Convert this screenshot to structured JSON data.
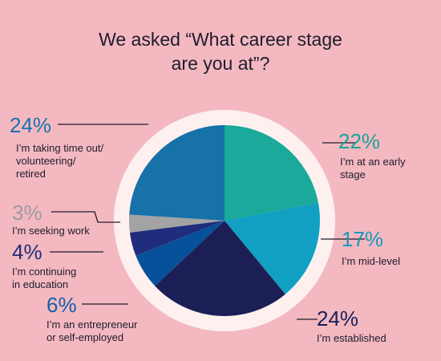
{
  "title": "We asked “What career stage\nare you at”?",
  "chart_data": {
    "type": "pie",
    "title": "We asked “What career stage are you at”?",
    "slices": [
      {
        "label": "I’m at an early stage",
        "percent_label": "22%",
        "value": 22,
        "color": "#1aa99a",
        "pct_color": "#17a596"
      },
      {
        "label": "I’m mid-level",
        "percent_label": "17%",
        "value": 17,
        "color": "#11a0c2",
        "pct_color": "#119bbd"
      },
      {
        "label": "I’m established",
        "percent_label": "24%",
        "value": 24,
        "color": "#1b1f56",
        "pct_color": "#1b1f56"
      },
      {
        "label": "I’m an entrepreneur or self-employed",
        "percent_label": "6%",
        "value": 6,
        "color": "#07509a",
        "pct_color": "#1160a8"
      },
      {
        "label": "I’m continuing in education",
        "percent_label": "4%",
        "value": 4,
        "color": "#1f2d7c",
        "pct_color": "#1f2d7c"
      },
      {
        "label": "I’m seeking work",
        "percent_label": "3%",
        "value": 3,
        "color": "#a3a2a5",
        "pct_color": "#9d9c9f"
      },
      {
        "label": "I’m taking time out/ volunteering/ retired",
        "percent_label": "24%",
        "value": 24,
        "color": "#1672a8",
        "pct_color": "#1a74b0"
      }
    ],
    "ring_color": "#fdf0ef",
    "leader_color": "#1d1d2b"
  }
}
